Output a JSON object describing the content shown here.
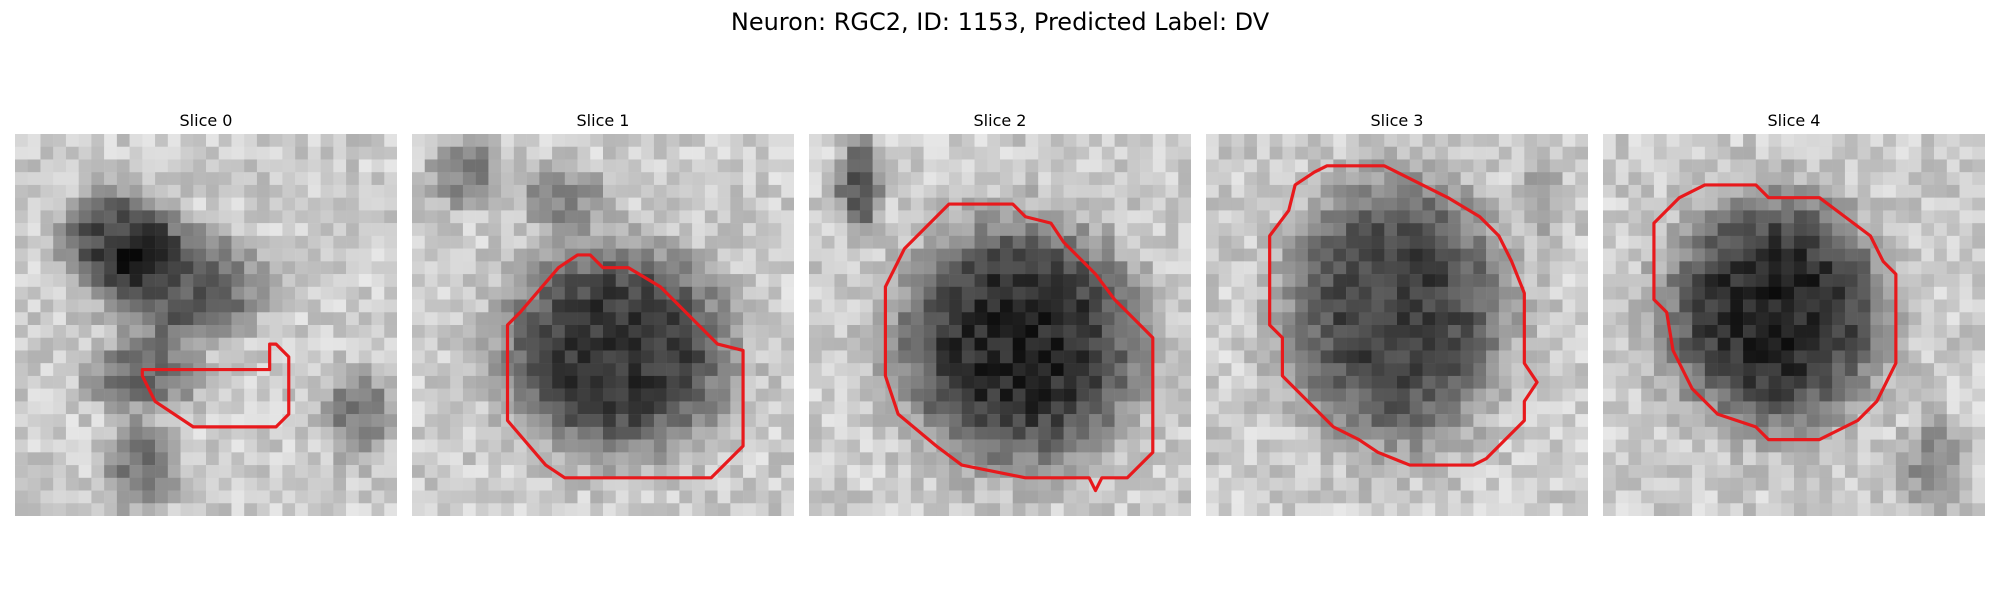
{
  "figure": {
    "title": "Neuron: RGC2, ID: 1153, Predicted Label: DV",
    "contour_color": "#e8191c",
    "colormap": "grayscale",
    "grid_size": 30
  },
  "panels": [
    {
      "title": "Slice 0"
    },
    {
      "title": "Slice 1"
    },
    {
      "title": "Slice 2"
    },
    {
      "title": "Slice 3"
    },
    {
      "title": "Slice 4"
    }
  ]
}
